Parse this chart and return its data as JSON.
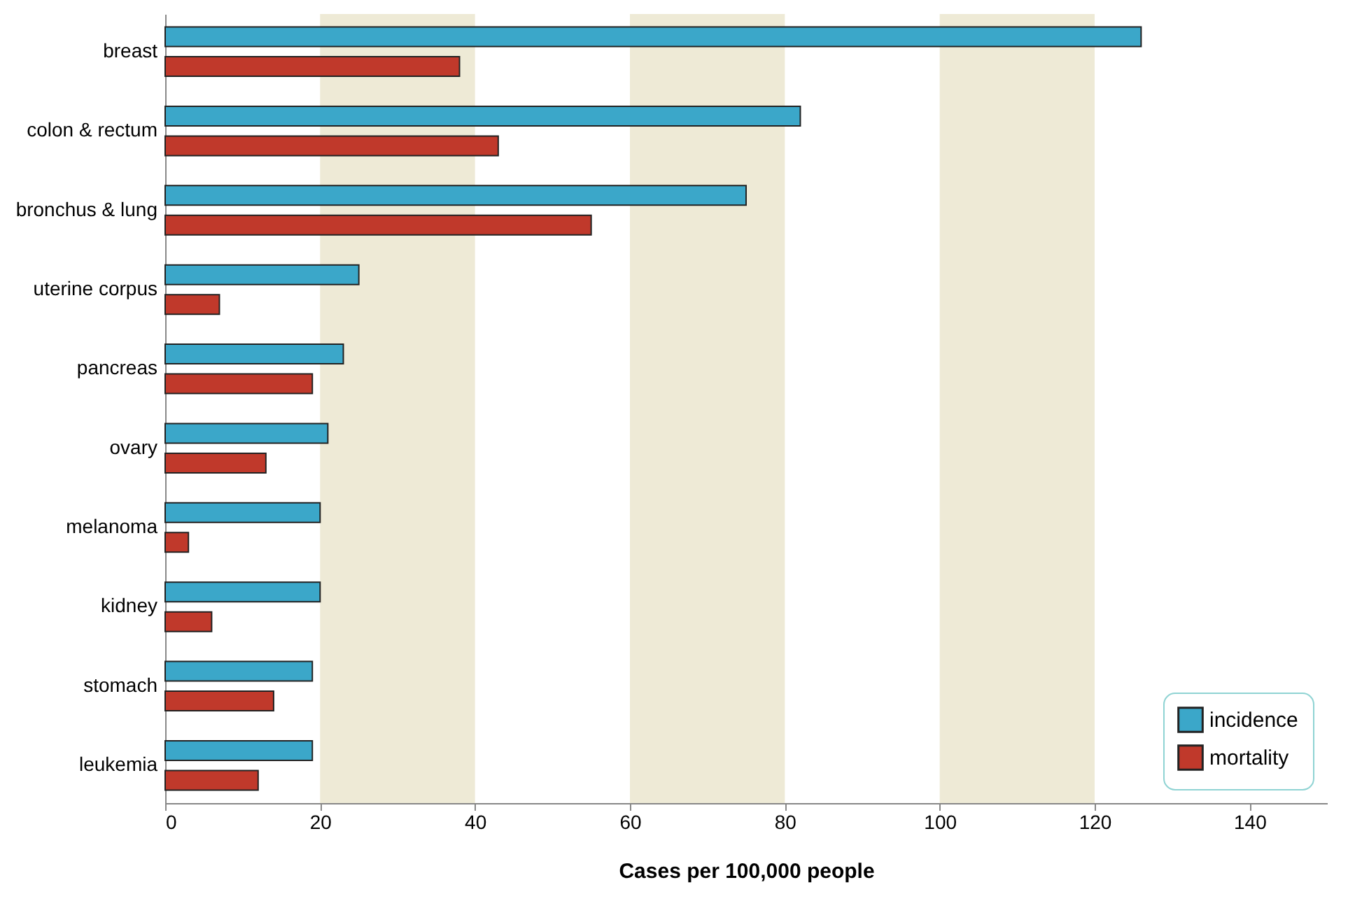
{
  "chart_data": {
    "type": "bar",
    "orientation": "horizontal",
    "xlabel": "Cases per 100,000 people",
    "categories": [
      "breast",
      "colon & rectum",
      "bronchus & lung",
      "uterine corpus",
      "pancreas",
      "ovary",
      "melanoma",
      "kidney",
      "stomach",
      "leukemia"
    ],
    "series": [
      {
        "name": "incidence",
        "color": "#3ba7c9",
        "values": [
          126,
          82,
          75,
          25,
          23,
          21,
          20,
          20,
          19,
          19
        ]
      },
      {
        "name": "mortality",
        "color": "#c0392b",
        "values": [
          38,
          43,
          55,
          7,
          19,
          13,
          3,
          6,
          14,
          12
        ]
      }
    ],
    "xlim": [
      0,
      150
    ],
    "xticks": [
      0,
      20,
      40,
      60,
      80,
      100,
      120,
      140
    ],
    "bands": [
      {
        "axis": "x",
        "from": 20,
        "to": 40,
        "color": "#eeead6"
      },
      {
        "axis": "x",
        "from": 60,
        "to": 80,
        "color": "#eeead6"
      },
      {
        "axis": "x",
        "from": 100,
        "to": 120,
        "color": "#eeead6"
      }
    ],
    "grid": false,
    "legend": "bottom right"
  }
}
